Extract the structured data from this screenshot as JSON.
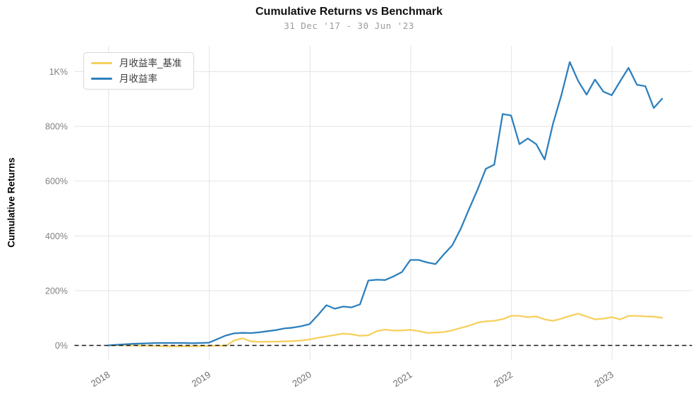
{
  "header": {
    "title": "Cumulative Returns vs Benchmark",
    "subtitle": "31 Dec '17 - 30 Jun '23"
  },
  "colors": {
    "benchmark_line": "#f6d05e",
    "strategy_line": "#2e80bd",
    "gridline": "#e8e8e8",
    "zero_line": "#1a1a1a",
    "tick_label": "#828282",
    "subtitle_text": "#9b9b9b"
  },
  "legend": {
    "position": "top-left",
    "items": [
      {
        "label": "月收益率_基准",
        "color": "#f6d05e"
      },
      {
        "label": "月收益率",
        "color": "#2e80bd"
      }
    ]
  },
  "chart_data": {
    "type": "line",
    "title": "Cumulative Returns vs Benchmark",
    "subtitle": "31 Dec '17 - 30 Jun '23",
    "ylabel": "Cumulative Returns",
    "xlabel": "",
    "grid": true,
    "legend_position": "top-left",
    "x_unit": "month-end",
    "x_start": "2017-12",
    "x_end": "2023-06",
    "x_tick_labels": [
      "2018",
      "2019",
      "2020",
      "2021",
      "2022",
      "2023"
    ],
    "y_ticks": [
      {
        "value": 0,
        "label": "0%"
      },
      {
        "value": 200,
        "label": "200%"
      },
      {
        "value": 400,
        "label": "400%"
      },
      {
        "value": 600,
        "label": "600%"
      },
      {
        "value": 800,
        "label": "800%"
      },
      {
        "value": 1000,
        "label": "1K%"
      }
    ],
    "ylim": [
      -55,
      1100
    ],
    "zero_line": {
      "style": "dashed",
      "color": "#1a1a1a",
      "value": 0
    },
    "series": [
      {
        "name": "月收益率_基准",
        "color": "#f6d05e",
        "values": [
          0,
          1,
          0,
          0,
          -1,
          -1,
          -2,
          -3,
          -3,
          -3,
          -3,
          -2,
          -2,
          0,
          -2,
          18,
          26,
          15,
          13,
          14,
          14,
          15,
          16,
          18,
          22,
          28,
          33,
          38,
          43,
          41,
          35,
          37,
          52,
          58,
          54,
          55,
          57,
          52,
          46,
          47,
          49,
          55,
          64,
          72,
          83,
          88,
          90,
          96,
          108,
          108,
          103,
          106,
          95,
          90,
          98,
          108,
          116,
          106,
          95,
          98,
          103,
          95,
          108,
          108,
          106,
          105,
          101
        ]
      },
      {
        "name": "月收益率",
        "color": "#2e80bd",
        "values": [
          0,
          2,
          4,
          6,
          7,
          8,
          9,
          9,
          9,
          9,
          8,
          9,
          10,
          23,
          36,
          44,
          46,
          45,
          48,
          52,
          56,
          62,
          65,
          70,
          78,
          111,
          147,
          134,
          142,
          139,
          150,
          237,
          240,
          239,
          252,
          268,
          312,
          312,
          303,
          297,
          333,
          366,
          426,
          498,
          568,
          645,
          660,
          845,
          840,
          735,
          756,
          735,
          679,
          810,
          915,
          1035,
          966,
          916,
          971,
          927,
          914,
          965,
          1014,
          952,
          947,
          867,
          901
        ]
      }
    ]
  }
}
